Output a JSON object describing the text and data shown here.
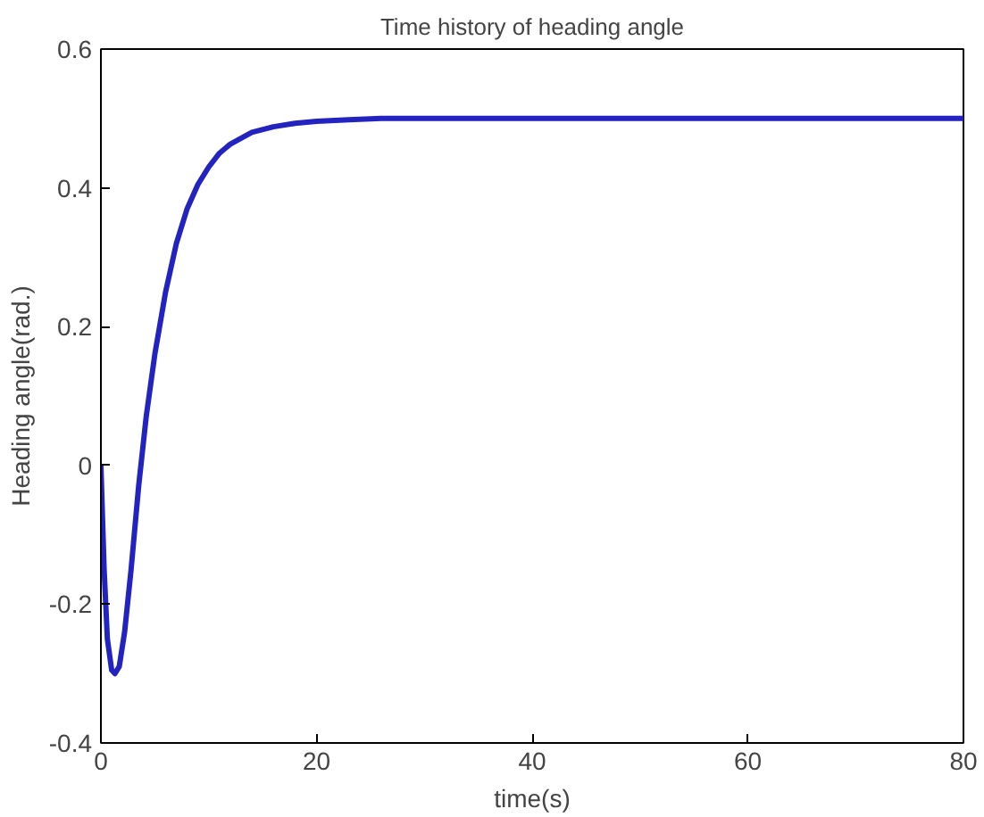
{
  "chart_data": {
    "type": "line",
    "title": "Time history of heading angle",
    "xlabel": "time(s)",
    "ylabel": "Heading angle(rad.)",
    "x": [
      0,
      0.3,
      0.6,
      1,
      1.3,
      1.7,
      2.2,
      2.8,
      3.5,
      4.2,
      5,
      6,
      7,
      8,
      9,
      10,
      11,
      12,
      14,
      16,
      18,
      20,
      23,
      26,
      30,
      40,
      60,
      80
    ],
    "series": [
      {
        "color": "#2323c0",
        "values": [
          0,
          -0.15,
          -0.25,
          -0.295,
          -0.3,
          -0.29,
          -0.24,
          -0.15,
          -0.03,
          0.07,
          0.16,
          0.25,
          0.32,
          0.37,
          0.405,
          0.43,
          0.45,
          0.463,
          0.48,
          0.488,
          0.493,
          0.496,
          0.498,
          0.5,
          0.5,
          0.5,
          0.5,
          0.5
        ]
      }
    ],
    "xlim": [
      0,
      80
    ],
    "xticks": [
      0,
      20,
      40,
      60,
      80
    ],
    "ylim": [
      -0.4,
      0.6
    ],
    "yticks": [
      -0.4,
      -0.2,
      0,
      0.2,
      0.4,
      0.6
    ],
    "grid": false,
    "marker": "none",
    "line_style": "solid"
  }
}
